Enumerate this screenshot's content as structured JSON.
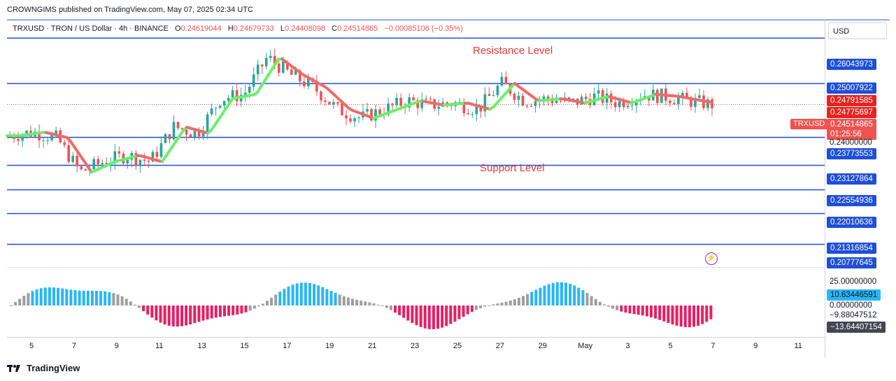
{
  "caption": "CROWNGIMS published on TradingView.com, May 07, 2025 02:34 UTC",
  "legend": {
    "title": "TRXUSD · TRON / US Dollar · 4h · BINANCE",
    "o_label": "O",
    "o_value": "0.24619044",
    "h_label": "H",
    "h_value": "0.24679733",
    "l_label": "L",
    "l_value": "0.24408098",
    "c_label": "C",
    "c_value": "0.24514865",
    "change": "−0.00085106 (−0.35%)"
  },
  "currency": "USD",
  "annotations": {
    "resistance": "Resistance Level",
    "support": "Support Level"
  },
  "symbol_tag": "TRXUSD",
  "price_axis": {
    "levels": [
      "0.26043973",
      "0.25007922",
      "0.23773553",
      "0.23127864",
      "0.22554936",
      "0.22010636",
      "0.21316854",
      "0.20777645"
    ],
    "red_tags": [
      "0.24791585",
      "0.24775697"
    ],
    "current": "0.24514865",
    "countdown": "01:25:56",
    "plain": "0.24000000"
  },
  "oscillator_axis": {
    "top": "25.00000000",
    "value_blue": "10.63446591",
    "zero": "0.00000000",
    "neg": "−9.88047512",
    "value_dark": "−13.64407154"
  },
  "time_ticks": [
    "5",
    "7",
    "9",
    "11",
    "13",
    "15",
    "17",
    "19",
    "21",
    "23",
    "25",
    "27",
    "29",
    "May",
    "3",
    "5",
    "7",
    "9",
    "11"
  ],
  "footer": "TradingView",
  "colors": {
    "level_line": "#1e4fd8",
    "up": "#26a69a",
    "down": "#ef5350",
    "ma_up": "#69f06a",
    "ma_down": "#f06a6a",
    "osc_pos": "#29b6f6",
    "osc_neg": "#e91e63",
    "osc_gray": "#9e9e9e"
  },
  "chart_data": {
    "type": "candlestick",
    "title": "TRXUSD · TRON / US Dollar · 4h · BINANCE",
    "x_ticks": [
      "5",
      "7",
      "9",
      "11",
      "13",
      "15",
      "17",
      "19",
      "21",
      "23",
      "25",
      "27",
      "29",
      "May",
      "3",
      "5",
      "7",
      "9",
      "11"
    ],
    "y_range": [
      0.2078,
      0.2645
    ],
    "horizontal_levels": [
      0.26043973,
      0.25007922,
      0.23773553,
      0.23127864,
      0.22554936,
      0.22010636,
      0.21316854
    ],
    "close_path": [
      {
        "x": 0,
        "y": 0.238
      },
      {
        "x": 1,
        "y": 0.2388
      },
      {
        "x": 2,
        "y": 0.2375
      },
      {
        "x": 3,
        "y": 0.2296
      },
      {
        "x": 4,
        "y": 0.232
      },
      {
        "x": 5,
        "y": 0.2335
      },
      {
        "x": 6,
        "y": 0.232
      },
      {
        "x": 7,
        "y": 0.24
      },
      {
        "x": 8,
        "y": 0.2385
      },
      {
        "x": 9,
        "y": 0.2465
      },
      {
        "x": 10,
        "y": 0.2475
      },
      {
        "x": 11,
        "y": 0.256
      },
      {
        "x": 12,
        "y": 0.252
      },
      {
        "x": 13,
        "y": 0.249
      },
      {
        "x": 14,
        "y": 0.244
      },
      {
        "x": 15,
        "y": 0.242
      },
      {
        "x": 16,
        "y": 0.244
      },
      {
        "x": 17,
        "y": 0.246
      },
      {
        "x": 18,
        "y": 0.245
      },
      {
        "x": 19,
        "y": 0.2455
      },
      {
        "x": 20,
        "y": 0.244
      },
      {
        "x": 21,
        "y": 0.25
      },
      {
        "x": 22,
        "y": 0.246
      },
      {
        "x": 23,
        "y": 0.2465
      },
      {
        "x": 24,
        "y": 0.2455
      },
      {
        "x": 25,
        "y": 0.247
      },
      {
        "x": 26,
        "y": 0.2455
      },
      {
        "x": 27,
        "y": 0.2475
      },
      {
        "x": 28,
        "y": 0.247
      },
      {
        "x": 29,
        "y": 0.246
      },
      {
        "x": 30,
        "y": 0.24514865
      }
    ]
  }
}
